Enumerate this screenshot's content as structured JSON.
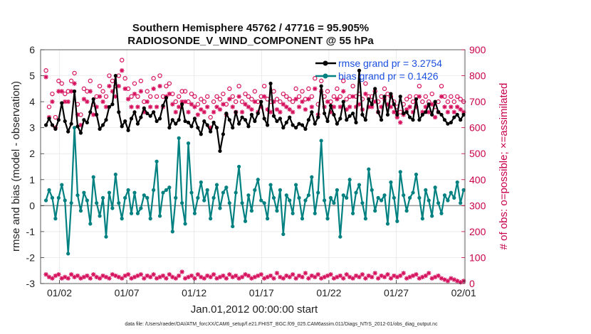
{
  "chart_data": {
    "type": "line",
    "title_line1": "Southern Hemisphere 45762 / 47716 = 95.905%",
    "title_line2": "RADIOSONDE_V_WIND_COMPONENT @ 55 hPa",
    "ylabel_left": "rmse and bias (model - observation)",
    "ylabel_right": "# of obs: o=possible; ×=assimilated",
    "xlabel": "Jan.01,2012 00:00:00 start",
    "footer": "data file: /Users/raeder/DAI/ATM_forcXX/CAM6_setup/f.e21.FHIST_BGC.f09_025.CAM6assim.011/Diags_NTrS_2012-01/obs_diag_output.nc",
    "x_range": [
      0.6,
      32.1
    ],
    "ylim_left": [
      -3,
      6
    ],
    "ylim_right": [
      0,
      900
    ],
    "yticks_left": [
      "-3",
      "-2",
      "-1",
      "0",
      "1",
      "2",
      "3",
      "4",
      "5",
      "6"
    ],
    "yticks_right": [
      "0",
      "100",
      "200",
      "300",
      "400",
      "500",
      "600",
      "700",
      "800",
      "900"
    ],
    "xticks": [
      {
        "day": 2,
        "label": "01/02"
      },
      {
        "day": 7,
        "label": "01/07"
      },
      {
        "day": 12,
        "label": "01/12"
      },
      {
        "day": 17,
        "label": "01/17"
      },
      {
        "day": 22,
        "label": "01/22"
      },
      {
        "day": 27,
        "label": "01/27"
      },
      {
        "day": 32,
        "label": "02/01"
      }
    ],
    "colors": {
      "rmse": "#000000",
      "bias": "#008080",
      "obs": "#d6125e",
      "zero_line": "#9a9a9a"
    },
    "legend": {
      "rmse_label": "rmse grand pr = 3.2754",
      "bias_label": "bias grand pr = 0.1426"
    },
    "series": [
      {
        "name": "rmse",
        "axis": "left",
        "values": [
          3.1,
          3.35,
          3.1,
          2.95,
          3.3,
          3.95,
          3.25,
          2.85,
          3.15,
          4.4,
          3.05,
          2.8,
          3.3,
          3.2,
          3.6,
          4.1,
          3.5,
          2.95,
          3.1,
          3.3,
          3.8,
          3.9,
          5.0,
          3.6,
          3.05,
          3.25,
          2.9,
          3.35,
          3.6,
          3.15,
          3.4,
          3.75,
          3.55,
          3.45,
          3.6,
          3.25,
          3.35,
          3.85,
          4.15,
          3.0,
          3.3,
          3.15,
          3.3,
          3.9,
          3.25,
          3.2,
          3.05,
          3.35,
          3.0,
          2.75,
          3.25,
          3.1,
          2.85,
          3.2,
          3.0,
          2.1,
          2.75,
          3.55,
          3.3,
          3.0,
          3.6,
          3.15,
          3.4,
          3.3,
          3.05,
          3.5,
          3.25,
          3.55,
          4.0,
          3.35,
          3.1,
          4.7,
          3.45,
          3.25,
          3.35,
          3.0,
          3.2,
          3.4,
          3.1,
          3.0,
          3.15,
          3.1,
          2.95,
          3.3,
          3.6,
          3.15,
          3.4,
          4.6,
          3.55,
          3.25,
          3.85,
          3.5,
          3.15,
          3.35,
          4.0,
          3.3,
          3.45,
          3.55,
          3.2,
          5.2,
          3.5,
          3.3,
          4.1,
          3.9,
          4.5,
          3.6,
          3.3,
          4.2,
          3.5,
          4.3,
          3.9,
          3.5,
          4.2,
          3.55,
          3.6,
          3.4,
          3.3,
          4.1,
          3.3,
          3.5,
          3.6,
          3.9,
          3.5,
          4.0,
          3.6,
          3.5,
          3.3,
          3.15,
          3.2,
          3.4,
          3.5,
          3.3,
          3.5
        ]
      },
      {
        "name": "bias",
        "axis": "left",
        "values": [
          0.2,
          0.6,
          0.3,
          -0.5,
          0.3,
          0.8,
          0.2,
          -1.85,
          0.1,
          3.0,
          0.4,
          -0.2,
          0.5,
          0.2,
          -0.7,
          1.1,
          0.1,
          -0.4,
          0.3,
          -1.2,
          0.5,
          -0.1,
          1.2,
          0.1,
          -0.5,
          0.3,
          0.6,
          -0.3,
          0.5,
          -0.3,
          -0.1,
          0.4,
          0.3,
          -0.5,
          0.6,
          1.7,
          -0.4,
          0.5,
          0.6,
          0.7,
          -1.0,
          0.3,
          2.6,
          0.1,
          -0.7,
          2.4,
          0.5,
          -0.3,
          0.3,
          0.9,
          0.2,
          0.6,
          -0.5,
          0.3,
          0.8,
          -0.1,
          0.5,
          0.7,
          0.1,
          -0.8,
          0.5,
          1.5,
          0.1,
          -0.6,
          0.4,
          -0.2,
          0.6,
          1.0,
          0.2,
          0.1,
          -0.5,
          0.8,
          0.3,
          -0.2,
          0.6,
          -1.1,
          0.4,
          0.2,
          -0.3,
          0.8,
          0.3,
          -0.5,
          0.2,
          0.4,
          1.1,
          -0.3,
          0.5,
          2.5,
          0.2,
          -0.5,
          0.3,
          0.1,
          0.6,
          -1.2,
          0.4,
          0.3,
          1.0,
          -0.3,
          0.5,
          0.8,
          0.1,
          -0.5,
          1.4,
          0.6,
          -0.2,
          0.3,
          0.2,
          0.4,
          -0.7,
          0.9,
          0.3,
          -0.6,
          1.3,
          0.4,
          -0.2,
          0.3,
          0.5,
          1.2,
          0.3,
          -0.5,
          0.6,
          0.2,
          -0.4,
          0.7,
          0.1,
          -0.3,
          0.4,
          0.2,
          0.5,
          0.3,
          0.9,
          0.1,
          0.6
        ]
      },
      {
        "name": "possible obs",
        "axis": "right",
        "values": [
          820,
          680,
          730,
          640,
          780,
          770,
          730,
          740,
          780,
          810,
          690,
          650,
          750,
          740,
          780,
          690,
          720,
          760,
          740,
          720,
          800,
          780,
          760,
          800,
          860,
          790,
          750,
          720,
          770,
          720,
          780,
          700,
          740,
          720,
          790,
          720,
          800,
          720,
          760,
          770,
          730,
          700,
          720,
          740,
          740,
          700,
          730,
          720,
          690,
          710,
          700,
          720,
          640,
          700,
          720,
          710,
          730,
          690,
          750,
          720,
          700,
          760,
          700,
          730,
          720,
          710,
          740,
          700,
          720,
          760,
          710,
          700,
          740,
          710,
          700,
          730,
          720,
          710,
          700,
          750,
          720,
          740,
          710,
          750,
          720,
          790,
          690,
          780,
          720,
          740,
          700,
          720,
          750,
          720,
          780,
          710,
          720,
          760,
          720,
          730,
          710,
          770,
          720,
          720,
          740,
          700,
          720,
          750,
          730,
          720,
          700,
          680,
          660,
          690,
          710,
          720,
          700,
          720,
          760,
          700,
          720,
          700,
          730,
          680,
          700,
          760,
          720,
          700,
          720,
          700,
          720,
          710,
          700
        ]
      },
      {
        "name": "assimilated obs",
        "axis": "right",
        "values": [
          795,
          640,
          700,
          600,
          740,
          740,
          700,
          700,
          740,
          770,
          650,
          610,
          710,
          700,
          740,
          650,
          680,
          720,
          700,
          680,
          760,
          740,
          720,
          760,
          820,
          750,
          710,
          680,
          730,
          680,
          740,
          660,
          700,
          680,
          750,
          680,
          760,
          680,
          720,
          730,
          690,
          660,
          680,
          700,
          700,
          660,
          690,
          680,
          650,
          670,
          660,
          680,
          600,
          660,
          680,
          670,
          690,
          650,
          710,
          680,
          660,
          720,
          660,
          690,
          680,
          670,
          700,
          660,
          680,
          720,
          670,
          660,
          700,
          670,
          660,
          690,
          680,
          670,
          660,
          710,
          680,
          700,
          670,
          710,
          680,
          750,
          650,
          740,
          680,
          700,
          660,
          680,
          710,
          680,
          740,
          670,
          680,
          720,
          680,
          690,
          670,
          730,
          680,
          680,
          700,
          660,
          680,
          710,
          690,
          680,
          660,
          640,
          620,
          650,
          670,
          680,
          660,
          680,
          720,
          660,
          680,
          660,
          690,
          640,
          660,
          720,
          680,
          660,
          680,
          660,
          680,
          670,
          660
        ]
      },
      {
        "name": "possible obs (cycle low)",
        "axis": "right",
        "values": [
          35,
          25,
          20,
          30,
          35,
          20,
          25,
          20,
          35,
          25,
          30,
          20,
          25,
          30,
          20,
          35,
          25,
          20,
          30,
          25,
          20,
          35,
          30,
          25,
          20,
          30,
          35,
          20,
          25,
          30,
          35,
          20,
          30,
          25,
          35,
          20,
          25,
          30,
          20,
          35,
          25,
          20,
          30,
          45,
          20,
          25,
          30,
          20,
          35,
          25,
          20,
          30,
          25,
          35,
          20,
          25,
          30,
          20,
          35,
          25,
          30,
          20,
          25,
          35,
          30,
          20,
          25,
          30,
          35,
          20,
          25,
          30,
          20,
          40,
          25,
          20,
          30,
          25,
          35,
          20,
          30,
          25,
          40,
          20,
          30,
          25,
          35,
          20,
          25,
          30,
          35,
          20,
          25,
          30,
          20,
          35,
          25,
          20,
          30,
          25,
          35,
          20,
          30,
          25,
          40,
          20,
          30,
          25,
          35,
          20,
          30,
          25,
          30,
          40,
          20,
          25,
          30,
          35,
          20,
          25,
          30,
          40,
          20,
          25,
          30,
          20,
          15,
          10,
          20,
          15,
          10,
          5,
          10
        ]
      }
    ]
  }
}
